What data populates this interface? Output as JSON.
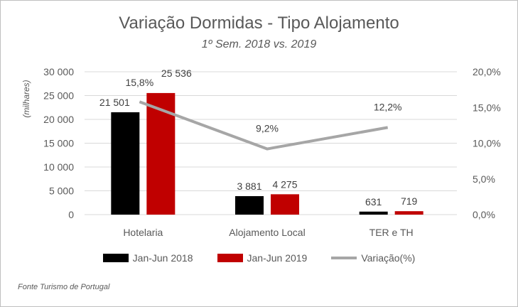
{
  "chart_data": {
    "type": "bar",
    "title": "Variação Dormidas - Tipo Alojamento",
    "subtitle": "1º Sem. 2018 vs. 2019",
    "ylabel": "(milhares)",
    "categories": [
      "Hotelaria",
      "Alojamento Local",
      "TER e TH"
    ],
    "ylim": [
      0,
      30000
    ],
    "yticks": [
      "0",
      "5 000",
      "10 000",
      "15 000",
      "20 000",
      "25 000",
      "30 000"
    ],
    "y2lim": [
      0,
      20
    ],
    "y2ticks": [
      "0,0%",
      "5,0%",
      "10,0%",
      "15,0%",
      "20,0%"
    ],
    "grid": true,
    "legend_position": "bottom",
    "series": [
      {
        "name": "Jan-Jun 2018",
        "type": "bar",
        "color": "#000000",
        "values": [
          21501,
          3881,
          631
        ],
        "labels": [
          "21 501",
          "3 881",
          "631"
        ]
      },
      {
        "name": "Jan-Jun 2019",
        "type": "bar",
        "color": "#c00000",
        "values": [
          25536,
          4275,
          719
        ],
        "labels": [
          "25 536",
          "4 275",
          "719"
        ]
      },
      {
        "name": "Variação(%)",
        "type": "line",
        "axis": "secondary",
        "color": "#a6a6a6",
        "values": [
          15.8,
          9.2,
          12.2
        ],
        "labels": [
          "15,8%",
          "9,2%",
          "12,2%"
        ]
      }
    ],
    "source": "Fonte Turismo de Portugal"
  }
}
